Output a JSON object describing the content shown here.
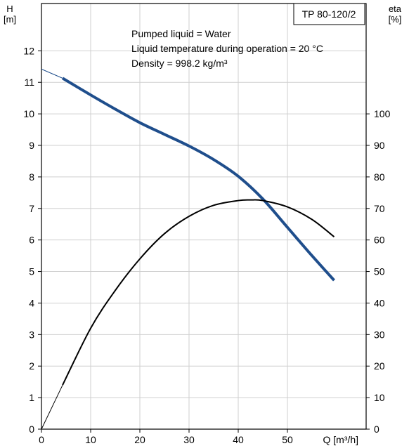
{
  "chart_data": {
    "type": "line",
    "title": "TP 80-120/2",
    "annotations": [
      "Pumped liquid = Water",
      "Liquid temperature during operation = 20 °C",
      "Density = 998.2 kg/m³"
    ],
    "xlabel": "Q [m³/h]",
    "ylabel_left": [
      "H",
      "[m]"
    ],
    "ylabel_right": [
      "eta",
      "[%]"
    ],
    "xlim": [
      0,
      66
    ],
    "ylim_left": [
      0,
      13.5
    ],
    "ylim_right": [
      0,
      135
    ],
    "x_ticks": [
      0,
      10,
      20,
      30,
      40,
      50
    ],
    "y_ticks_left": [
      0,
      1,
      2,
      3,
      4,
      5,
      6,
      7,
      8,
      9,
      10,
      11,
      12
    ],
    "y_ticks_right": [
      0,
      10,
      20,
      30,
      40,
      50,
      60,
      70,
      80,
      90,
      100
    ],
    "grid": true,
    "series": [
      {
        "axis": "left",
        "color": "#1f4e8c",
        "extrapolated_x": [
          0,
          4.3
        ],
        "extrapolated_y": [
          11.42,
          11.13
        ],
        "x": [
          4.3,
          10,
          15,
          20,
          25,
          30,
          35,
          40,
          45,
          50,
          55,
          59.5
        ],
        "y": [
          11.13,
          10.6,
          10.15,
          9.72,
          9.35,
          8.98,
          8.55,
          8.02,
          7.3,
          6.4,
          5.5,
          4.72
        ]
      },
      {
        "axis": "right",
        "color": "#000000",
        "extrapolated_x": [
          0,
          4.3
        ],
        "extrapolated_y": [
          0,
          14
        ],
        "x": [
          4.3,
          10,
          15,
          20,
          25,
          30,
          35,
          40,
          42.5,
          45,
          50,
          55,
          59.5
        ],
        "y": [
          14,
          32,
          44,
          54,
          62,
          67.5,
          71,
          72.5,
          72.7,
          72.5,
          70.5,
          66.5,
          61
        ]
      }
    ]
  }
}
